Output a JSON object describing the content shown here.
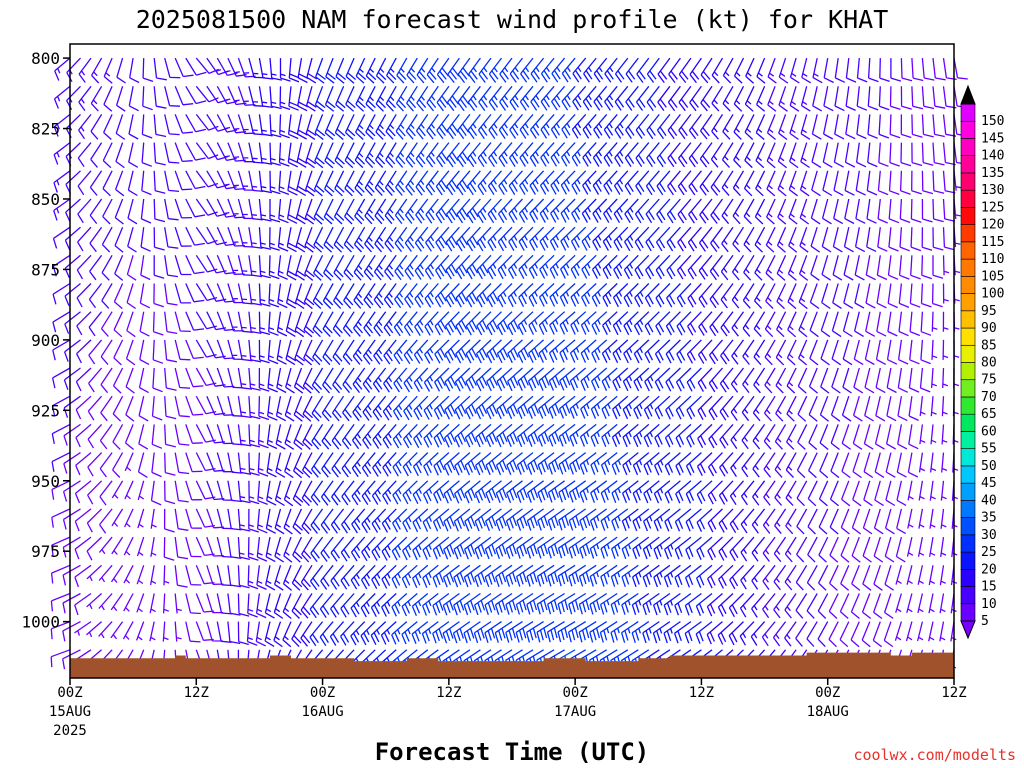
{
  "chart_data": {
    "type": "wind_barb_time_height",
    "title": "2025081500 NAM forecast wind profile (kt) for KHAT",
    "xlabel": "Forecast Time (UTC)",
    "ylabel": "",
    "y_ticks": [
      "800",
      "825",
      "850",
      "875",
      "900",
      "925",
      "950",
      "975",
      "1000"
    ],
    "y_values": [
      800,
      825,
      850,
      875,
      900,
      925,
      950,
      975,
      1000
    ],
    "ylim": [
      1020,
      795
    ],
    "x_ticks": [
      {
        "hour": 0,
        "time": "00Z",
        "date": "15AUG",
        "year": "2025"
      },
      {
        "hour": 12,
        "time": "12Z",
        "date": "",
        "year": ""
      },
      {
        "hour": 24,
        "time": "00Z",
        "date": "16AUG",
        "year": ""
      },
      {
        "hour": 36,
        "time": "12Z",
        "date": "",
        "year": ""
      },
      {
        "hour": 48,
        "time": "00Z",
        "date": "17AUG",
        "year": ""
      },
      {
        "hour": 60,
        "time": "12Z",
        "date": "",
        "year": ""
      },
      {
        "hour": 72,
        "time": "00Z",
        "date": "18AUG",
        "year": ""
      },
      {
        "hour": 84,
        "time": "12Z",
        "date": "",
        "year": ""
      }
    ],
    "xlim": [
      0,
      84
    ],
    "barb_interval_hours": 1,
    "levels_mb": [
      800,
      810,
      820,
      830,
      840,
      850,
      860,
      870,
      880,
      890,
      900,
      910,
      920,
      930,
      940,
      950,
      960,
      970,
      980,
      990,
      1000,
      1010
    ],
    "wind_keyframes": [
      {
        "hour": 0,
        "dir_deg": 240,
        "speed_low_kt": 8,
        "speed_high_kt": 14
      },
      {
        "hour": 6,
        "dir_deg": 200,
        "speed_low_kt": 5,
        "speed_high_kt": 12
      },
      {
        "hour": 12,
        "dir_deg": 150,
        "speed_low_kt": 8,
        "speed_high_kt": 12
      },
      {
        "hour": 24,
        "dir_deg": 210,
        "speed_low_kt": 20,
        "speed_high_kt": 20
      },
      {
        "hour": 36,
        "dir_deg": 225,
        "speed_low_kt": 28,
        "speed_high_kt": 28
      },
      {
        "hour": 48,
        "dir_deg": 230,
        "speed_low_kt": 30,
        "speed_high_kt": 25
      },
      {
        "hour": 60,
        "dir_deg": 225,
        "speed_low_kt": 22,
        "speed_high_kt": 18
      },
      {
        "hour": 72,
        "dir_deg": 200,
        "speed_low_kt": 10,
        "speed_high_kt": 12
      },
      {
        "hour": 84,
        "dir_deg": 180,
        "speed_low_kt": 5,
        "speed_high_kt": 8
      }
    ],
    "surface_pressure_mb": [
      {
        "hour": 0,
        "mb": 1013
      },
      {
        "hour": 9,
        "mb": 1013
      },
      {
        "hour": 10,
        "mb": 1012
      },
      {
        "hour": 11,
        "mb": 1013
      },
      {
        "hour": 19,
        "mb": 1012
      },
      {
        "hour": 21,
        "mb": 1013
      },
      {
        "hour": 27,
        "mb": 1014
      },
      {
        "hour": 32,
        "mb": 1013
      },
      {
        "hour": 35,
        "mb": 1014
      },
      {
        "hour": 42,
        "mb": 1014
      },
      {
        "hour": 45,
        "mb": 1013
      },
      {
        "hour": 49,
        "mb": 1014
      },
      {
        "hour": 54,
        "mb": 1013
      },
      {
        "hour": 57,
        "mb": 1012
      },
      {
        "hour": 66,
        "mb": 1012
      },
      {
        "hour": 70,
        "mb": 1011
      },
      {
        "hour": 78,
        "mb": 1012
      },
      {
        "hour": 80,
        "mb": 1011
      },
      {
        "hour": 84,
        "mb": 1011
      }
    ],
    "colorbar": {
      "ticks": [
        "5",
        "10",
        "15",
        "20",
        "25",
        "30",
        "35",
        "40",
        "45",
        "50",
        "55",
        "60",
        "65",
        "70",
        "75",
        "80",
        "85",
        "90",
        "95",
        "100",
        "105",
        "110",
        "115",
        "120",
        "125",
        "130",
        "135",
        "140",
        "145",
        "150"
      ],
      "colors": [
        "#6a00ff",
        "#4800ff",
        "#2a00ff",
        "#0a14ff",
        "#0030ff",
        "#0050ff",
        "#0078ff",
        "#00a0ff",
        "#00c8ff",
        "#00e8d8",
        "#00f0a0",
        "#00e860",
        "#30e830",
        "#70ee20",
        "#b0f000",
        "#e6f000",
        "#ffe000",
        "#ffc000",
        "#ffa000",
        "#ff8c00",
        "#ff7800",
        "#ff6400",
        "#ff3c00",
        "#ff0a0a",
        "#ff0040",
        "#ff0070",
        "#ff0098",
        "#ff00c0",
        "#ff00e0",
        "#e000ff"
      ],
      "arrow_low_color": "#7a00ff",
      "arrow_high_color": "#000000"
    },
    "colors": {
      "terrain": "#a0522d",
      "grid": "#000000"
    },
    "credit": "coolwx.com/modelts"
  }
}
